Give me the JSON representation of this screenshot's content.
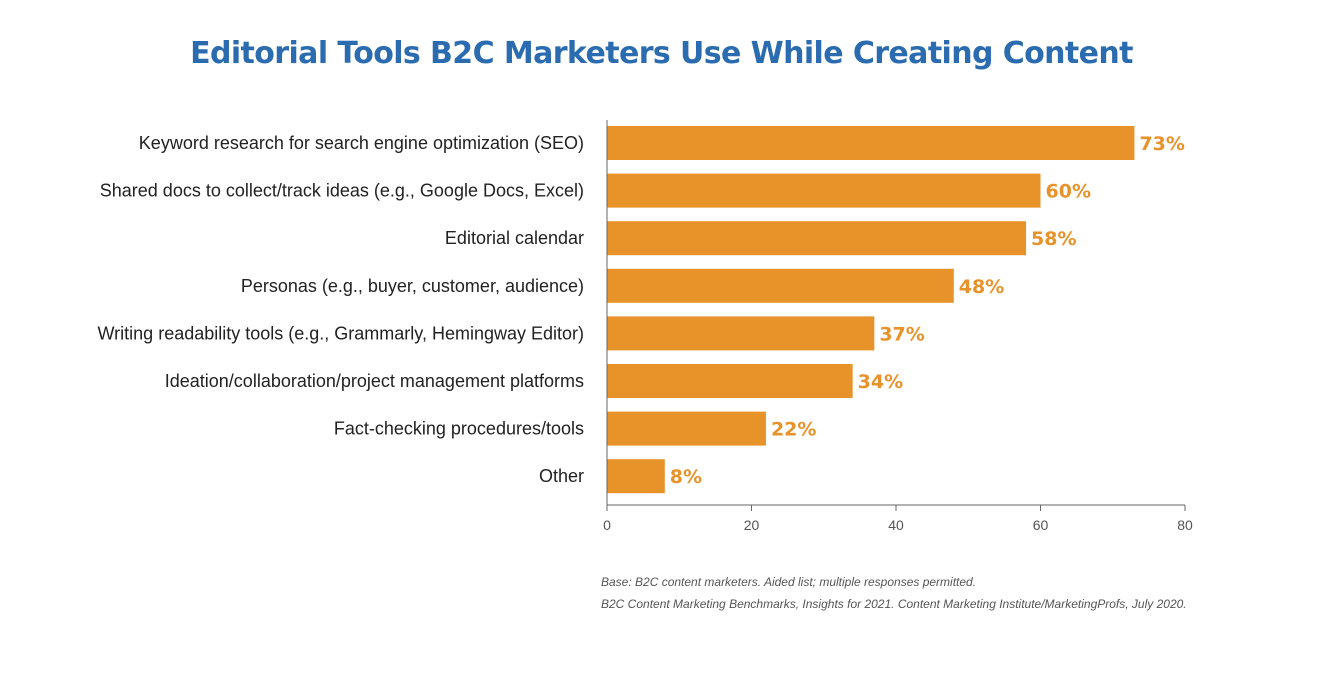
{
  "chart_data": {
    "type": "bar",
    "orientation": "horizontal",
    "title": "Editorial Tools B2C Marketers Use While Creating Content",
    "categories": [
      "Keyword research for search engine optimization (SEO)",
      "Shared docs to collect/track ideas (e.g., Google Docs, Excel)",
      "Editorial calendar",
      "Personas (e.g., buyer, customer, audience)",
      "Writing readability tools (e.g., Grammarly, Hemingway Editor)",
      "Ideation/collaboration/project management platforms",
      "Fact-checking procedures/tools",
      "Other"
    ],
    "values": [
      73,
      60,
      58,
      48,
      37,
      34,
      22,
      8
    ],
    "value_labels": [
      "73%",
      "60%",
      "58%",
      "48%",
      "37%",
      "34%",
      "22%",
      "8%"
    ],
    "xlim": [
      0,
      80
    ],
    "xticks": [
      0,
      20,
      40,
      60,
      80
    ],
    "xlabel": "",
    "ylabel": "",
    "grid": false,
    "bar_color": "#e8922a"
  },
  "notes": {
    "base": "Base: B2C content marketers. Aided list; multiple responses permitted.",
    "source": "B2C Content Marketing Benchmarks, Insights for 2021. Content Marketing Institute/MarketingProfs, July 2020."
  },
  "colors": {
    "title": "#2b6cb0",
    "bar": "#e8922a",
    "axis": "#666666"
  }
}
